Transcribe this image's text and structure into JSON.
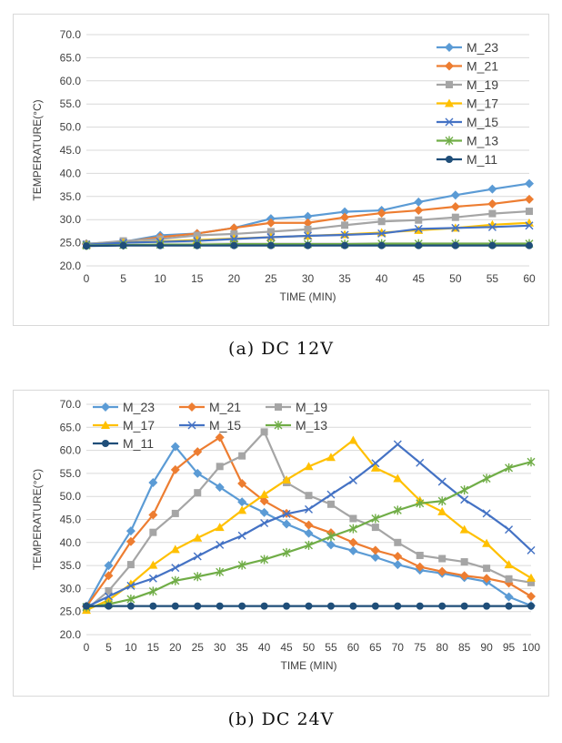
{
  "charts": [
    {
      "type": "line",
      "caption": "(a) DC 12V",
      "xlabel": "TIME (MIN)",
      "ylabel": "TEMPERATURE(°C)",
      "x": [
        0,
        5,
        10,
        15,
        20,
        25,
        30,
        35,
        40,
        45,
        50,
        55,
        60
      ],
      "xlim": [
        0,
        60
      ],
      "ylim": [
        20,
        70
      ],
      "yticks": [
        "20.0",
        "25.0",
        "30.0",
        "35.0",
        "40.0",
        "45.0",
        "50.0",
        "55.0",
        "60.0",
        "65.0",
        "70.0"
      ],
      "xticks": [
        "0",
        "5",
        "10",
        "15",
        "20",
        "25",
        "30",
        "35",
        "40",
        "45",
        "50",
        "55",
        "60"
      ],
      "grid": true,
      "legend_position": "right, vertical",
      "series": [
        {
          "name": "M_23",
          "color": "#5b9bd5",
          "marker": "diamond",
          "values": [
            24.8,
            25.2,
            26.6,
            27.0,
            28.2,
            30.2,
            30.7,
            31.7,
            32.0,
            33.8,
            35.3,
            36.6,
            37.8
          ]
        },
        {
          "name": "M_21",
          "color": "#ed7d31",
          "marker": "diamond",
          "values": [
            24.7,
            25.2,
            26.2,
            27.0,
            28.2,
            29.3,
            29.3,
            30.5,
            31.4,
            32.0,
            32.8,
            33.4,
            34.4
          ]
        },
        {
          "name": "M_19",
          "color": "#a5a5a5",
          "marker": "square",
          "values": [
            24.7,
            25.4,
            25.8,
            26.6,
            26.9,
            27.4,
            27.9,
            28.8,
            29.6,
            29.9,
            30.5,
            31.3,
            31.8
          ]
        },
        {
          "name": "M_17",
          "color": "#ffc000",
          "marker": "triangle",
          "values": [
            24.6,
            25.0,
            25.3,
            25.6,
            25.9,
            26.2,
            26.5,
            26.8,
            27.2,
            27.7,
            28.2,
            28.9,
            29.3
          ]
        },
        {
          "name": "M_15",
          "color": "#4472c4",
          "marker": "x",
          "values": [
            24.6,
            25.0,
            25.2,
            25.4,
            25.8,
            26.2,
            26.5,
            26.7,
            27.0,
            28.0,
            28.2,
            28.4,
            28.7
          ]
        },
        {
          "name": "M_13",
          "color": "#70ad47",
          "marker": "asterisk",
          "values": [
            24.4,
            24.5,
            24.6,
            24.6,
            24.7,
            24.7,
            24.7,
            24.7,
            24.8,
            24.8,
            24.8,
            24.8,
            24.8
          ]
        },
        {
          "name": "M_11",
          "color": "#1f4e79",
          "marker": "circle",
          "values": [
            24.3,
            24.4,
            24.4,
            24.4,
            24.4,
            24.4,
            24.4,
            24.4,
            24.4,
            24.4,
            24.4,
            24.4,
            24.4
          ]
        }
      ]
    },
    {
      "type": "line",
      "caption": "(b) DC 24V",
      "xlabel": "TIME (MIN)",
      "ylabel": "TEMPERATURE(°C)",
      "x": [
        0,
        5,
        10,
        15,
        20,
        25,
        30,
        35,
        40,
        45,
        50,
        55,
        60,
        65,
        70,
        75,
        80,
        85,
        90,
        95,
        100
      ],
      "xlim": [
        0,
        100
      ],
      "ylim": [
        20,
        70
      ],
      "yticks": [
        "20.0",
        "25.0",
        "30.0",
        "35.0",
        "40.0",
        "45.0",
        "50.0",
        "55.0",
        "60.0",
        "65.0",
        "70.0"
      ],
      "xticks": [
        "0",
        "5",
        "10",
        "15",
        "20",
        "25",
        "30",
        "35",
        "40",
        "45",
        "50",
        "55",
        "60",
        "65",
        "70",
        "75",
        "80",
        "85",
        "90",
        "95",
        "100"
      ],
      "grid": true,
      "legend_position": "top-left, 3 columns",
      "series": [
        {
          "name": "M_23",
          "color": "#5b9bd5",
          "marker": "diamond",
          "values": [
            26.2,
            35.0,
            42.5,
            53.0,
            60.8,
            55.0,
            52.0,
            48.8,
            46.5,
            44.0,
            42.0,
            39.5,
            38.2,
            36.8,
            35.2,
            34.0,
            33.3,
            32.4,
            31.5,
            28.2,
            26.3
          ]
        },
        {
          "name": "M_21",
          "color": "#ed7d31",
          "marker": "diamond",
          "values": [
            26.1,
            32.8,
            40.2,
            46.0,
            55.8,
            59.7,
            62.8,
            52.8,
            49.0,
            46.3,
            43.8,
            42.1,
            40.0,
            38.3,
            37.0,
            34.7,
            33.7,
            32.8,
            32.2,
            31.2,
            28.3
          ]
        },
        {
          "name": "M_19",
          "color": "#a5a5a5",
          "marker": "square",
          "values": [
            25.5,
            29.5,
            35.2,
            42.2,
            46.3,
            50.8,
            56.5,
            58.8,
            64.0,
            53.0,
            50.2,
            48.3,
            45.2,
            43.3,
            40.0,
            37.2,
            36.5,
            35.8,
            34.4,
            32.1,
            31.3
          ]
        },
        {
          "name": "M_17",
          "color": "#ffc000",
          "marker": "triangle",
          "values": [
            25.3,
            27.5,
            31.0,
            35.1,
            38.5,
            41.0,
            43.3,
            47.0,
            50.4,
            53.6,
            56.5,
            58.5,
            62.2,
            56.2,
            53.9,
            49.1,
            46.7,
            42.8,
            39.8,
            35.2,
            32.3
          ]
        },
        {
          "name": "M_15",
          "color": "#4472c4",
          "marker": "x",
          "values": [
            26.0,
            28.3,
            30.6,
            32.2,
            34.5,
            37.0,
            39.5,
            41.5,
            44.2,
            46.2,
            47.2,
            50.4,
            53.5,
            57.2,
            61.3,
            57.3,
            53.2,
            49.3,
            46.3,
            42.8,
            38.3
          ]
        },
        {
          "name": "M_13",
          "color": "#70ad47",
          "marker": "asterisk",
          "values": [
            26.0,
            26.6,
            27.7,
            29.4,
            31.7,
            32.6,
            33.6,
            35.1,
            36.3,
            37.8,
            39.4,
            41.3,
            43.0,
            45.2,
            47.0,
            48.5,
            49.0,
            51.4,
            53.9,
            56.2,
            57.5
          ]
        },
        {
          "name": "M_11",
          "color": "#1f4e79",
          "marker": "circle",
          "values": [
            26.2,
            26.2,
            26.2,
            26.2,
            26.2,
            26.2,
            26.2,
            26.2,
            26.2,
            26.2,
            26.2,
            26.2,
            26.2,
            26.2,
            26.2,
            26.2,
            26.2,
            26.2,
            26.2,
            26.2,
            26.2
          ]
        }
      ]
    }
  ]
}
